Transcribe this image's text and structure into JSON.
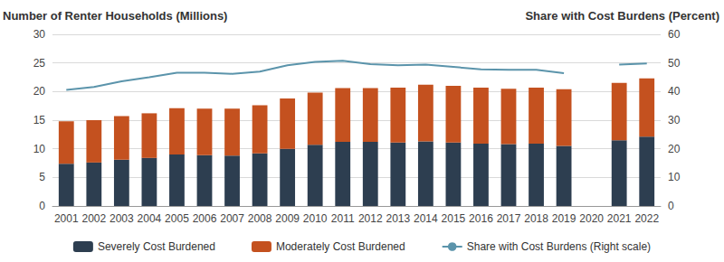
{
  "chart_data": {
    "type": "bar",
    "ylabel": "Number of Renter Households (Millions)",
    "y2label": "Share with Cost Burdens (Percent)",
    "categories": [
      "2001",
      "2002",
      "2003",
      "2004",
      "2005",
      "2006",
      "2007",
      "2008",
      "2009",
      "2010",
      "2011",
      "2012",
      "2013",
      "2014",
      "2015",
      "2016",
      "2017",
      "2018",
      "2019",
      "2020",
      "2021",
      "2022"
    ],
    "series": [
      {
        "name": "Severely Cost Burdened",
        "type": "bar",
        "color": "#2d3e50",
        "values": [
          7.4,
          7.6,
          8.1,
          8.4,
          9.0,
          8.9,
          8.8,
          9.2,
          10.0,
          10.7,
          11.2,
          11.2,
          11.1,
          11.3,
          11.1,
          10.9,
          10.8,
          10.9,
          10.5,
          null,
          11.5,
          12.1
        ]
      },
      {
        "name": "Moderately Cost Burdened",
        "type": "bar",
        "color": "#c4511f",
        "values": [
          7.4,
          7.4,
          7.6,
          7.8,
          8.1,
          8.1,
          8.2,
          8.4,
          8.8,
          9.1,
          9.4,
          9.4,
          9.6,
          9.9,
          9.9,
          9.8,
          9.7,
          9.8,
          9.9,
          null,
          10.0,
          10.2
        ]
      },
      {
        "name": "Share with Cost Burdens (Right scale)",
        "type": "line",
        "axis": "y2",
        "color": "#5b94ab",
        "values": [
          40.6,
          41.6,
          43.6,
          45.0,
          46.6,
          46.6,
          46.2,
          47.0,
          49.2,
          50.4,
          50.8,
          49.6,
          49.2,
          49.4,
          48.6,
          47.8,
          47.6,
          47.6,
          46.4,
          null,
          49.4,
          49.8
        ]
      }
    ],
    "ylim": [
      0,
      30
    ],
    "yticks": [
      0,
      5,
      10,
      15,
      20,
      25,
      30
    ],
    "y2lim": [
      0,
      60
    ],
    "y2ticks": [
      0,
      10,
      20,
      30,
      40,
      50,
      60
    ],
    "stacked": true,
    "grid": true,
    "legend": "bottom"
  }
}
